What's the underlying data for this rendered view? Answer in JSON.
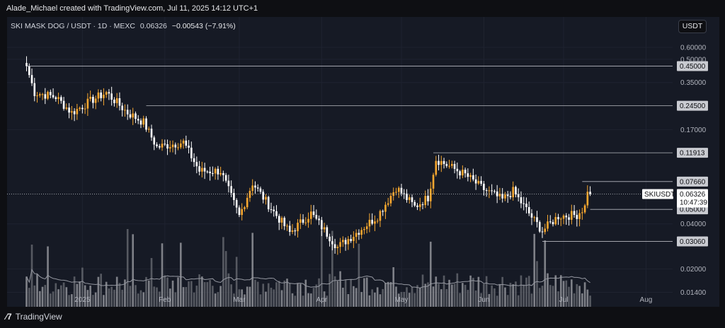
{
  "credit": "Alade_Michael created with TradingView.com, Jul 11, 2025 14:12 UTC+1",
  "header": {
    "symbol": "SKI MASK DOG / USDT · 1D · MEXC",
    "price": "0.06326",
    "change": "−0.00543 (−7.91%)"
  },
  "currency_button": "USDT",
  "logo_text": "TradingView",
  "colors": {
    "up": "#f7a72f",
    "down": "#ffffff",
    "background": "#161a25",
    "volume_ma": "#9598a1"
  },
  "chart_data": {
    "type": "candlestick",
    "y_scale": "log",
    "ylim": [
      0.0125,
      0.62
    ],
    "y_ticks": [
      "0.60000",
      "0.50000",
      "0.35000",
      "0.17000",
      "0.04000",
      "0.02000",
      "0.01400"
    ],
    "x_labels": [
      {
        "label": "2025",
        "date": "2025-01-01"
      },
      {
        "label": "Feb",
        "date": "2025-02-01"
      },
      {
        "label": "Mar",
        "date": "2025-03-01"
      },
      {
        "label": "Apr",
        "date": "2025-04-01"
      },
      {
        "label": "May",
        "date": "2025-05-01"
      },
      {
        "label": "Jun",
        "date": "2025-06-01"
      },
      {
        "label": "Jul",
        "date": "2025-07-01"
      },
      {
        "label": "Aug",
        "date": "2025-08-01"
      }
    ],
    "x_range": [
      "2024-12-09",
      "2025-08-11"
    ],
    "series_start_date": "2024-12-11",
    "close_path": [
      {
        "date": "2024-12-11",
        "close": 0.45
      },
      {
        "date": "2024-12-14",
        "close": 0.3
      },
      {
        "date": "2024-12-22",
        "close": 0.28
      },
      {
        "date": "2024-12-28",
        "close": 0.22
      },
      {
        "date": "2025-01-05",
        "close": 0.27
      },
      {
        "date": "2025-01-10",
        "close": 0.3
      },
      {
        "date": "2025-01-18",
        "close": 0.22
      },
      {
        "date": "2025-01-24",
        "close": 0.19
      },
      {
        "date": "2025-01-29",
        "close": 0.13
      },
      {
        "date": "2025-02-08",
        "close": 0.14
      },
      {
        "date": "2025-02-14",
        "close": 0.09
      },
      {
        "date": "2025-02-22",
        "close": 0.09
      },
      {
        "date": "2025-03-01",
        "close": 0.045
      },
      {
        "date": "2025-03-06",
        "close": 0.075
      },
      {
        "date": "2025-03-14",
        "close": 0.048
      },
      {
        "date": "2025-03-20",
        "close": 0.035
      },
      {
        "date": "2025-03-28",
        "close": 0.047
      },
      {
        "date": "2025-04-07",
        "close": 0.028
      },
      {
        "date": "2025-04-15",
        "close": 0.036
      },
      {
        "date": "2025-04-22",
        "close": 0.045
      },
      {
        "date": "2025-04-29",
        "close": 0.07
      },
      {
        "date": "2025-05-06",
        "close": 0.052
      },
      {
        "date": "2025-05-11",
        "close": 0.06
      },
      {
        "date": "2025-05-14",
        "close": 0.108
      },
      {
        "date": "2025-05-25",
        "close": 0.085
      },
      {
        "date": "2025-06-01",
        "close": 0.068
      },
      {
        "date": "2025-06-08",
        "close": 0.058
      },
      {
        "date": "2025-06-12",
        "close": 0.066
      },
      {
        "date": "2025-06-20",
        "close": 0.042
      },
      {
        "date": "2025-06-23",
        "close": 0.036
      },
      {
        "date": "2025-06-29",
        "close": 0.045
      },
      {
        "date": "2025-07-06",
        "close": 0.046
      },
      {
        "date": "2025-07-09",
        "close": 0.052
      },
      {
        "date": "2025-07-10",
        "close": 0.068
      },
      {
        "date": "2025-07-11",
        "close": 0.06326
      }
    ],
    "horizontal_levels": [
      {
        "value": 0.45,
        "label": "0.45000",
        "from_date": "2024-12-11"
      },
      {
        "value": 0.245,
        "label": "0.24500",
        "from_date": "2025-01-25"
      },
      {
        "value": 0.11913,
        "label": "0.11913",
        "from_date": "2025-05-13"
      },
      {
        "value": 0.0766,
        "label": "0.07660",
        "from_date": "2025-07-08"
      },
      {
        "value": 0.05,
        "label": "0.05000",
        "from_date": "2025-07-11"
      },
      {
        "value": 0.0306,
        "label": "0.03060",
        "from_date": "2025-06-23"
      }
    ],
    "last_price": {
      "label": "SKIUSDT",
      "value": "0.06326",
      "countdown": "10:47:39"
    },
    "volume": {
      "shown": true,
      "moving_average": true
    }
  }
}
